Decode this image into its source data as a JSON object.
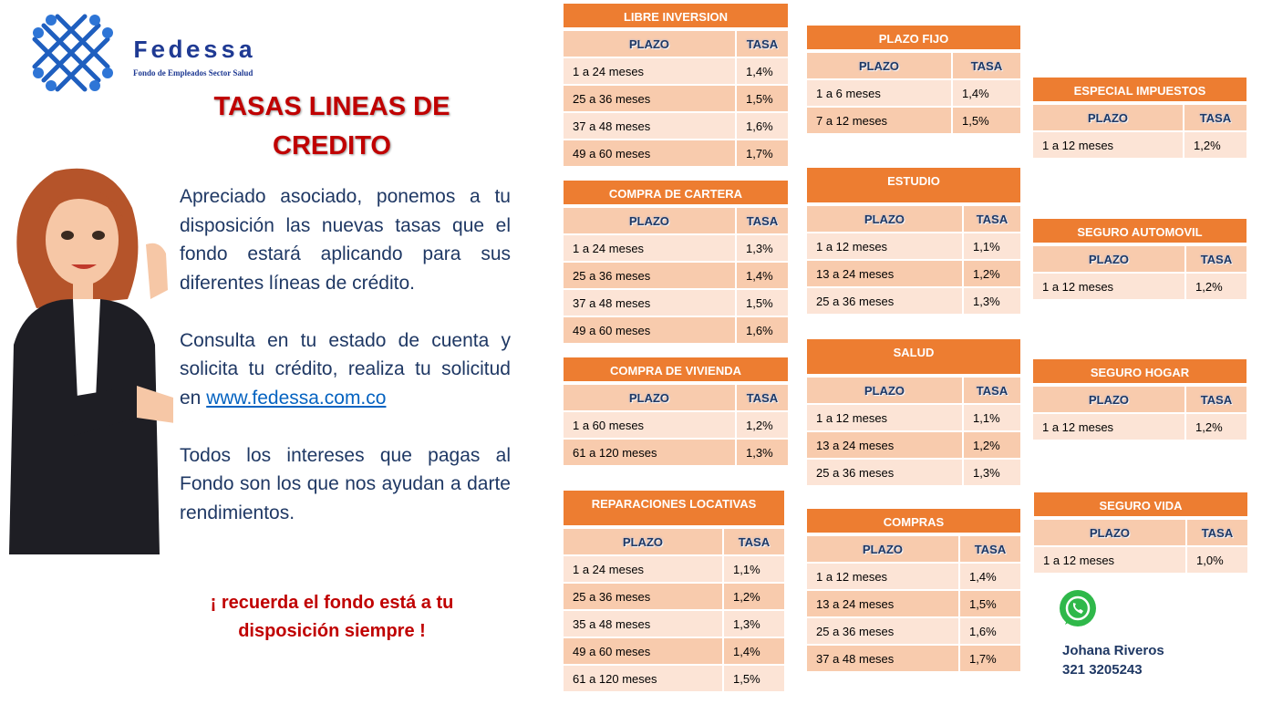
{
  "logo": {
    "name": "Fedessa",
    "tagline": "Fondo de Empleados Sector Salud"
  },
  "title": "TASAS LINEAS DE CREDITO",
  "paragraphs": [
    {
      "text": "Apreciado asociado, ponemos a tu disposición las nuevas tasas que el fondo estará aplicando para sus diferentes líneas de crédito."
    },
    {
      "text": "Consulta en tu estado de cuenta y solicita tu crédito, realiza tu solicitud en",
      "link": "www.fedessa.com.co"
    },
    {
      "text": "Todos los intereses que pagas al Fondo son los que nos ayudan a darte rendimientos."
    }
  ],
  "reminder": "¡ recuerda el fondo está a tu disposición siempre !",
  "tables": [
    {
      "title": "LIBRE INVERSION",
      "columns": [
        "PLAZO",
        "TASA"
      ],
      "rows": [
        [
          "1 a 24 meses",
          "1,4%"
        ],
        [
          "25 a 36 meses",
          "1,5%"
        ],
        [
          "37 a 48 meses",
          "1,6%"
        ],
        [
          "49 a 60 meses",
          "1,7%"
        ]
      ]
    },
    {
      "title": "COMPRA DE CARTERA",
      "columns": [
        "PLAZO",
        "TASA"
      ],
      "rows": [
        [
          "1 a 24 meses",
          "1,3%"
        ],
        [
          "25 a 36 meses",
          "1,4%"
        ],
        [
          "37 a 48 meses",
          "1,5%"
        ],
        [
          "49 a 60 meses",
          "1,6%"
        ]
      ]
    },
    {
      "title": "COMPRA DE VIVIENDA",
      "columns": [
        "PLAZO",
        "TASA"
      ],
      "rows": [
        [
          "1 a 60 meses",
          "1,2%"
        ],
        [
          "61 a 120 meses",
          "1,3%"
        ]
      ]
    },
    {
      "title": "REPARACIONES LOCATIVAS",
      "columns": [
        "PLAZO",
        "TASA"
      ],
      "rows": [
        [
          "1 a 24 meses",
          "1,1%"
        ],
        [
          "25 a 36 meses",
          "1,2%"
        ],
        [
          "35 a 48 meses",
          "1,3%"
        ],
        [
          "49 a 60 meses",
          "1,4%"
        ],
        [
          "61 a 120 meses",
          "1,5%"
        ]
      ]
    },
    {
      "title": "PLAZO FIJO",
      "columns": [
        "PLAZO",
        "TASA"
      ],
      "rows": [
        [
          "1 a 6 meses",
          "1,4%"
        ],
        [
          "7 a 12 meses",
          "1,5%"
        ]
      ]
    },
    {
      "title": "ESTUDIO",
      "columns": [
        "PLAZO",
        "TASA"
      ],
      "rows": [
        [
          "1 a 12 meses",
          "1,1%"
        ],
        [
          "13 a 24 meses",
          "1,2%"
        ],
        [
          "25 a 36 meses",
          "1,3%"
        ]
      ]
    },
    {
      "title": "SALUD",
      "columns": [
        "PLAZO",
        "TASA"
      ],
      "rows": [
        [
          "1 a 12 meses",
          "1,1%"
        ],
        [
          "13 a 24 meses",
          "1,2%"
        ],
        [
          "25 a 36 meses",
          "1,3%"
        ]
      ]
    },
    {
      "title": "COMPRAS",
      "columns": [
        "PLAZO",
        "TASA"
      ],
      "rows": [
        [
          "1 a 12 meses",
          "1,4%"
        ],
        [
          "13 a 24 meses",
          "1,5%"
        ],
        [
          "25 a 36 meses",
          "1,6%"
        ],
        [
          "37 a 48 meses",
          "1,7%"
        ]
      ]
    },
    {
      "title": "ESPECIAL IMPUESTOS",
      "columns": [
        "PLAZO",
        "TASA"
      ],
      "rows": [
        [
          "1 a 12 meses",
          "1,2%"
        ]
      ]
    },
    {
      "title": "SEGURO AUTOMOVIL",
      "columns": [
        "PLAZO",
        "TASA"
      ],
      "rows": [
        [
          "1 a 12 meses",
          "1,2%"
        ]
      ]
    },
    {
      "title": "SEGURO HOGAR",
      "columns": [
        "PLAZO",
        "TASA"
      ],
      "rows": [
        [
          "1 a 12 meses",
          "1,2%"
        ]
      ]
    },
    {
      "title": "SEGURO VIDA",
      "columns": [
        "PLAZO",
        "TASA"
      ],
      "rows": [
        [
          "1 a 12 meses",
          "1,0%"
        ]
      ]
    }
  ],
  "contact": {
    "name": "Johana Riveros",
    "phone": "321 3205243"
  }
}
